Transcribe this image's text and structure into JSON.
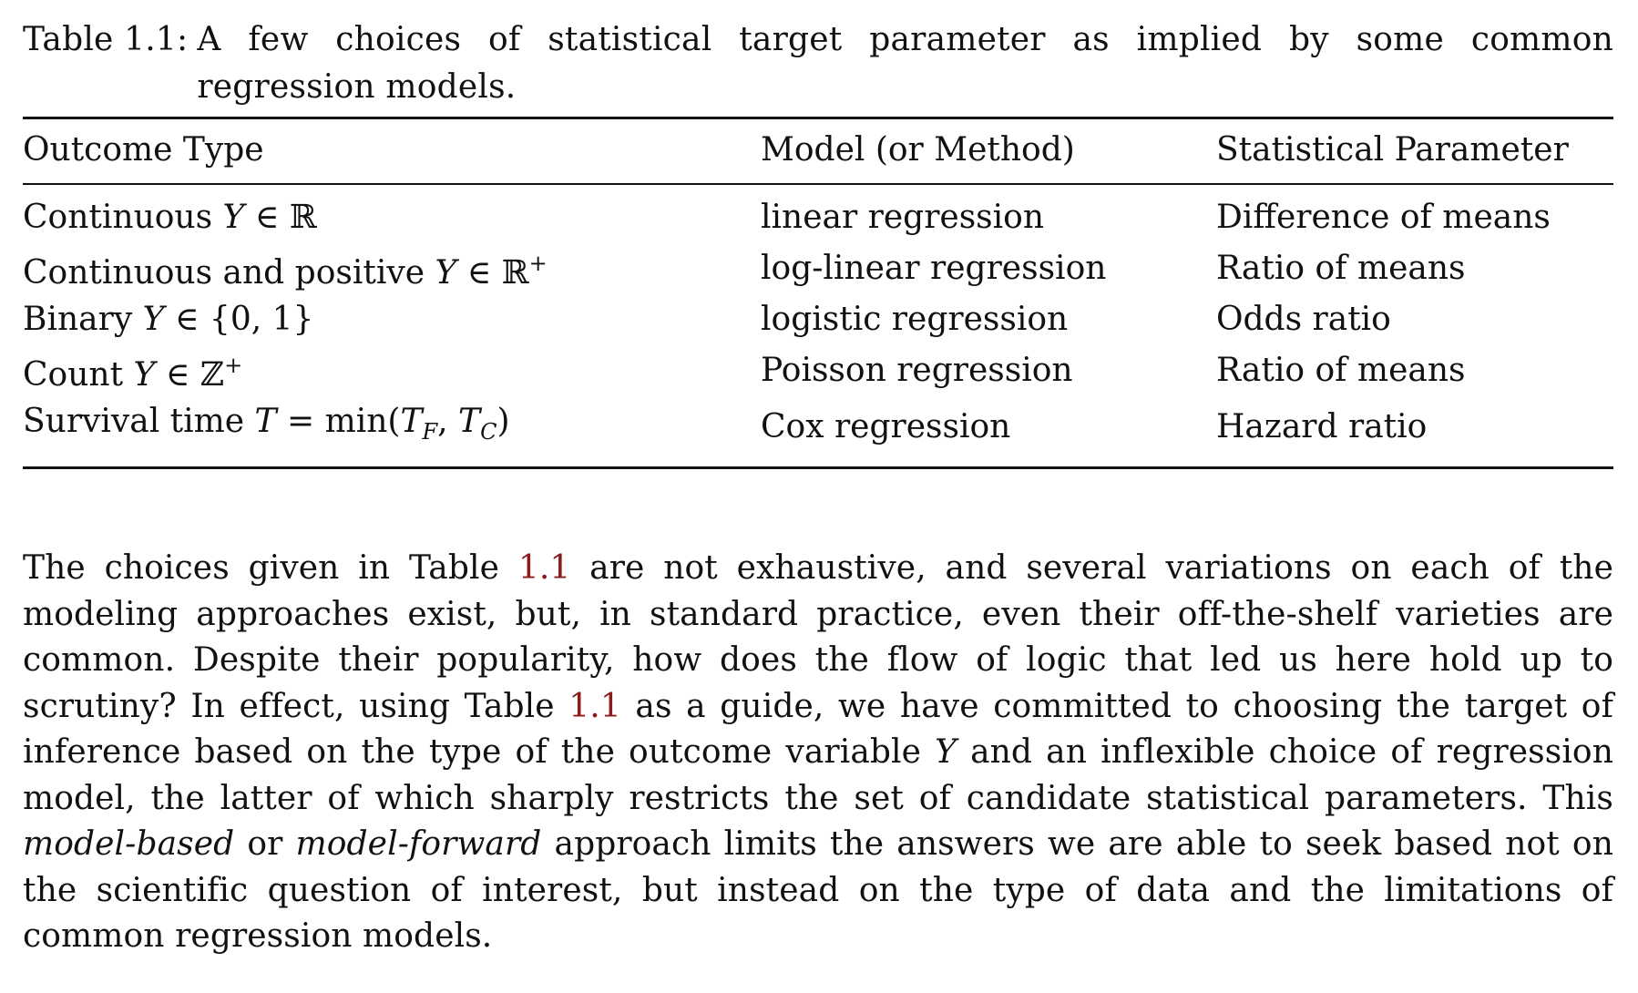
{
  "caption": {
    "label": "Table 1.1:",
    "text": "A few choices of statistical target parameter as implied by some common regression models."
  },
  "table": {
    "headers": [
      "Outcome Type",
      "Model (or Method)",
      "Statistical Parameter"
    ],
    "rows": [
      {
        "outcome_text": "Continuous ",
        "outcome_math": "Y",
        "outcome_tail": " ∈ ℝ",
        "model": "linear regression",
        "parameter": "Difference of means"
      },
      {
        "outcome_text": "Continuous and positive ",
        "outcome_math": "Y",
        "outcome_tail": " ∈ ℝ",
        "outcome_sup": "+",
        "model": "log-linear regression",
        "parameter": "Ratio of means"
      },
      {
        "outcome_text": "Binary ",
        "outcome_math": "Y",
        "outcome_tail": " ∈ {0, 1}",
        "model": "logistic regression",
        "parameter": "Odds ratio"
      },
      {
        "outcome_text": "Count ",
        "outcome_math": "Y",
        "outcome_tail": " ∈ ℤ",
        "outcome_sup": "+",
        "model": "Poisson regression",
        "parameter": "Ratio of means"
      },
      {
        "outcome_text": "Survival time ",
        "outcome_math": "T",
        "outcome_tail": " = min(",
        "sub_T1": "T",
        "sub_1": "F",
        "sep": ", ",
        "sub_T2": "T",
        "sub_2": "C",
        "close": ")",
        "model": "Cox regression",
        "parameter": "Hazard ratio"
      }
    ]
  },
  "paragraph": {
    "p1": "The choices given in Table ",
    "ref1": "1.1",
    "p2": " are not exhaustive, and several variations on each of the modeling approaches exist, but, in standard practice, even their off-the-shelf varieties are common. Despite their popularity, how does the flow of logic that led us here hold up to scrutiny? In effect, using Table ",
    "ref2": "1.1",
    "p3": " as a guide, we have committed to choosing the target of inference based on the type of the outcome variable ",
    "var": "Y",
    "p4": " and an inflexible choice of regression model, the latter of which sharply restricts the set of candidate statistical parameters. This ",
    "em1": "model-based",
    "p5": " or ",
    "em2": "model-forward",
    "p6": " approach limits the answers we are able to seek based not on the scientific question of interest, but instead on the type of data and the limitations of common regression models."
  },
  "colors": {
    "text": "#111111",
    "link": "#8b1a1a"
  }
}
